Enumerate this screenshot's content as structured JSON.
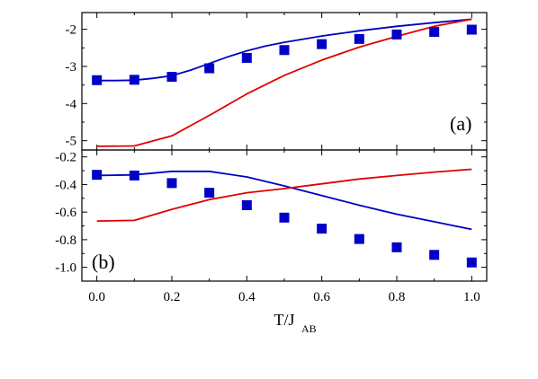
{
  "chart_data": [
    {
      "type": "line",
      "panel_label": "(a)",
      "x": [
        0.0,
        0.1,
        0.2,
        0.3,
        0.4,
        0.5,
        0.6,
        0.7,
        0.8,
        0.9,
        1.0
      ],
      "xlim": [
        -0.04,
        1.04
      ],
      "ylim": [
        -5.25,
        -1.55
      ],
      "yticks": [
        -5,
        -4,
        -3,
        -2
      ],
      "ytick_labels": [
        "-5",
        "-4",
        "-3",
        "-2"
      ],
      "series": [
        {
          "kind": "line",
          "color": "#0000c0",
          "x": [
            0.0,
            0.05,
            0.1,
            0.15,
            0.2,
            0.25,
            0.3,
            0.35,
            0.4,
            0.45,
            0.5,
            0.6,
            0.7,
            0.8,
            0.9,
            1.0
          ],
          "y": [
            -3.38,
            -3.38,
            -3.37,
            -3.32,
            -3.25,
            -3.1,
            -2.92,
            -2.74,
            -2.58,
            -2.45,
            -2.35,
            -2.18,
            -2.04,
            -1.92,
            -1.82,
            -1.73
          ]
        },
        {
          "kind": "line",
          "color": "#e00000",
          "x": [
            0.0,
            0.1,
            0.2,
            0.3,
            0.4,
            0.5,
            0.6,
            0.7,
            0.8,
            0.9,
            1.0
          ],
          "y": [
            -5.15,
            -5.14,
            -4.87,
            -4.32,
            -3.74,
            -3.24,
            -2.83,
            -2.48,
            -2.19,
            -1.92,
            -1.73
          ]
        },
        {
          "kind": "scatter",
          "color": "#0000c8",
          "x": [
            0.0,
            0.1,
            0.2,
            0.3,
            0.4,
            0.5,
            0.6,
            0.7,
            0.8,
            0.9,
            1.0
          ],
          "y": [
            -3.37,
            -3.36,
            -3.28,
            -3.05,
            -2.77,
            -2.56,
            -2.4,
            -2.26,
            -2.14,
            -2.07,
            -2.01
          ]
        }
      ]
    },
    {
      "type": "line",
      "panel_label": "(b)",
      "x": [
        0.0,
        0.1,
        0.2,
        0.3,
        0.4,
        0.5,
        0.6,
        0.7,
        0.8,
        0.9,
        1.0
      ],
      "xlim": [
        -0.04,
        1.04
      ],
      "ylim": [
        -1.1,
        -0.15
      ],
      "yticks": [
        -1.0,
        -0.8,
        -0.6,
        -0.4,
        -0.2
      ],
      "ytick_labels": [
        "-1.0",
        "-0.8",
        "-0.6",
        "-0.4",
        "-0.2"
      ],
      "xticks": [
        0.0,
        0.2,
        0.4,
        0.6,
        0.8,
        1.0
      ],
      "xtick_labels": [
        "0.0",
        "0.2",
        "0.4",
        "0.6",
        "0.8",
        "1.0"
      ],
      "xlabel": "T/J",
      "xlabel_sub": "AB",
      "series": [
        {
          "kind": "line",
          "color": "#0000c0",
          "x": [
            0.0,
            0.1,
            0.2,
            0.3,
            0.4,
            0.5,
            0.6,
            0.7,
            0.8,
            0.9,
            1.0
          ],
          "y": [
            -0.335,
            -0.33,
            -0.305,
            -0.305,
            -0.345,
            -0.41,
            -0.48,
            -0.55,
            -0.615,
            -0.67,
            -0.725
          ]
        },
        {
          "kind": "line",
          "color": "#e00000",
          "x": [
            0.0,
            0.1,
            0.2,
            0.3,
            0.4,
            0.5,
            0.6,
            0.7,
            0.8,
            0.9,
            1.0
          ],
          "y": [
            -0.665,
            -0.66,
            -0.58,
            -0.51,
            -0.46,
            -0.43,
            -0.395,
            -0.36,
            -0.335,
            -0.31,
            -0.29
          ]
        },
        {
          "kind": "scatter",
          "color": "#0000c8",
          "x": [
            0.0,
            0.1,
            0.2,
            0.3,
            0.4,
            0.5,
            0.6,
            0.7,
            0.8,
            0.9,
            1.0
          ],
          "y": [
            -0.33,
            -0.335,
            -0.39,
            -0.46,
            -0.55,
            -0.64,
            -0.72,
            -0.795,
            -0.855,
            -0.91,
            -0.965
          ]
        }
      ]
    }
  ]
}
